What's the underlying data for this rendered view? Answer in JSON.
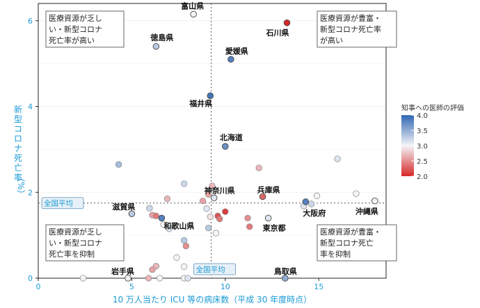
{
  "chart_data": {
    "type": "scatter",
    "xlabel": "10 万人当たり ICU 等の病床数（平成 30 年度時点）",
    "ylabel_lines": [
      "新型コロナ死亡率",
      "（%）"
    ],
    "xlim": [
      0,
      18.6
    ],
    "ylim": [
      0,
      6.4
    ],
    "xticks": [
      0,
      5,
      10,
      15
    ],
    "yticks": [
      0,
      2,
      4,
      6
    ],
    "national_avg": {
      "x": 9.25,
      "y": 1.75,
      "label": "全国平均"
    },
    "quadrants": {
      "top_left": [
        "医療資源が乏し",
        "い・新型コロナ",
        "死亡率が高い"
      ],
      "top_right": [
        "医療資源が豊富・",
        "新型コロナ死亡率",
        "が高い"
      ],
      "bottom_left": [
        "医療資源が乏し",
        "い・新型コロナ",
        "死亡率を抑制"
      ],
      "bottom_right": [
        "医療資源が豊富・",
        "新型コロナ死亡",
        "率を抑制"
      ]
    },
    "legend": {
      "title": "知事への医師の評価",
      "min": 2.0,
      "max": 4.0,
      "ticks": [
        "4.0",
        "3.5",
        "3.0",
        "2.5",
        "2.0"
      ]
    },
    "labeled_points": [
      {
        "name": "富山県",
        "x": 8.3,
        "y": 6.15,
        "score": 3.0
      },
      {
        "name": "石川県",
        "x": 13.3,
        "y": 5.95,
        "score": 2.0
      },
      {
        "name": "徳島県",
        "x": 6.3,
        "y": 5.4,
        "score": 3.3
      },
      {
        "name": "愛媛県",
        "x": 10.3,
        "y": 5.1,
        "score": 3.8
      },
      {
        "name": "福井県",
        "x": 9.2,
        "y": 4.25,
        "score": 3.9
      },
      {
        "name": "北海道",
        "x": 10.0,
        "y": 3.07,
        "score": 3.7
      },
      {
        "name": "神奈川県",
        "x": 9.4,
        "y": 1.87,
        "score": 3.1
      },
      {
        "name": "兵庫県",
        "x": 12.0,
        "y": 1.9,
        "score": 2.3
      },
      {
        "name": "滋賀県",
        "x": 5.0,
        "y": 1.5,
        "score": 3.3
      },
      {
        "name": "大阪府",
        "x": 14.3,
        "y": 1.78,
        "score": 3.8
      },
      {
        "name": "沖縄県",
        "x": 18.0,
        "y": 1.8,
        "score": 3.0
      },
      {
        "name": "和歌山県",
        "x": 6.6,
        "y": 1.4,
        "score": 3.8
      },
      {
        "name": "東京都",
        "x": 12.3,
        "y": 1.4,
        "score": 3.1
      },
      {
        "name": "岩手県",
        "x": 4.8,
        "y": 0.0,
        "score": 3.0
      },
      {
        "name": "鳥取県",
        "x": 13.2,
        "y": 0.0,
        "score": 3.5
      }
    ],
    "other_points": [
      {
        "x": 4.3,
        "y": 2.65,
        "score": 3.4
      },
      {
        "x": 16.0,
        "y": 2.78,
        "score": 3.1
      },
      {
        "x": 11.8,
        "y": 2.57,
        "score": 2.7
      },
      {
        "x": 9.3,
        "y": 2.15,
        "score": 2.7
      },
      {
        "x": 7.8,
        "y": 2.2,
        "score": 3.2
      },
      {
        "x": 9.1,
        "y": 1.95,
        "score": 2.6
      },
      {
        "x": 6.9,
        "y": 1.85,
        "score": 2.7
      },
      {
        "x": 8.8,
        "y": 1.8,
        "score": 2.6
      },
      {
        "x": 9.0,
        "y": 1.62,
        "score": 3.1
      },
      {
        "x": 17.0,
        "y": 1.97,
        "score": 3.0
      },
      {
        "x": 14.9,
        "y": 1.92,
        "score": 3.0
      },
      {
        "x": 14.2,
        "y": 1.68,
        "score": 3.1
      },
      {
        "x": 14.6,
        "y": 1.73,
        "score": 3.2
      },
      {
        "x": 5.95,
        "y": 1.63,
        "score": 3.2
      },
      {
        "x": 6.1,
        "y": 1.47,
        "score": 2.6
      },
      {
        "x": 6.3,
        "y": 1.45,
        "score": 2.4
      },
      {
        "x": 9.6,
        "y": 1.45,
        "score": 2.2
      },
      {
        "x": 10.0,
        "y": 1.55,
        "score": 2.1
      },
      {
        "x": 9.2,
        "y": 1.43,
        "score": 2.9
      },
      {
        "x": 9.7,
        "y": 1.38,
        "score": 2.4
      },
      {
        "x": 11.2,
        "y": 1.4,
        "score": 2.5
      },
      {
        "x": 11.3,
        "y": 1.2,
        "score": 2.4
      },
      {
        "x": 6.7,
        "y": 1.25,
        "score": 3.0
      },
      {
        "x": 7.0,
        "y": 1.15,
        "score": 3.1
      },
      {
        "x": 9.1,
        "y": 1.17,
        "score": 3.3
      },
      {
        "x": 9.5,
        "y": 1.05,
        "score": 3.0
      },
      {
        "x": 7.8,
        "y": 0.88,
        "score": 3.3
      },
      {
        "x": 7.9,
        "y": 0.75,
        "score": 2.5
      },
      {
        "x": 7.4,
        "y": 0.48,
        "score": 3.0
      },
      {
        "x": 6.3,
        "y": 0.28,
        "score": 2.7
      },
      {
        "x": 6.1,
        "y": 0.2,
        "score": 2.6
      },
      {
        "x": 7.8,
        "y": 0.27,
        "score": 3.0
      },
      {
        "x": 5.9,
        "y": 0.0,
        "score": 2.7
      },
      {
        "x": 6.5,
        "y": 0.0,
        "score": 3.0
      },
      {
        "x": 7.8,
        "y": 0.0,
        "score": 3.0
      },
      {
        "x": 8.0,
        "y": 0.0,
        "score": 3.1
      },
      {
        "x": 2.4,
        "y": 0.0,
        "score": 3.0
      }
    ]
  }
}
